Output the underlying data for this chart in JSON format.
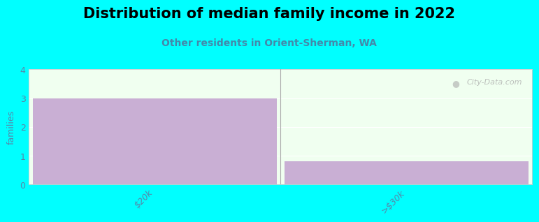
{
  "title": "Distribution of median family income in 2022",
  "subtitle": "Other residents in Orient-Sherman, WA",
  "categories": [
    "$20k",
    ">$30k"
  ],
  "values": [
    3,
    0.8
  ],
  "ylim": [
    0,
    4
  ],
  "yticks": [
    0,
    1,
    2,
    3,
    4
  ],
  "bar_color": "#c9afd4",
  "bg_color": "#00ffff",
  "plot_bg_color": "#f0fff0",
  "ylabel": "families",
  "watermark": "City-Data.com",
  "title_fontsize": 15,
  "subtitle_fontsize": 10,
  "label_fontsize": 9,
  "tick_color": "#5588aa",
  "subtitle_color": "#4488aa"
}
